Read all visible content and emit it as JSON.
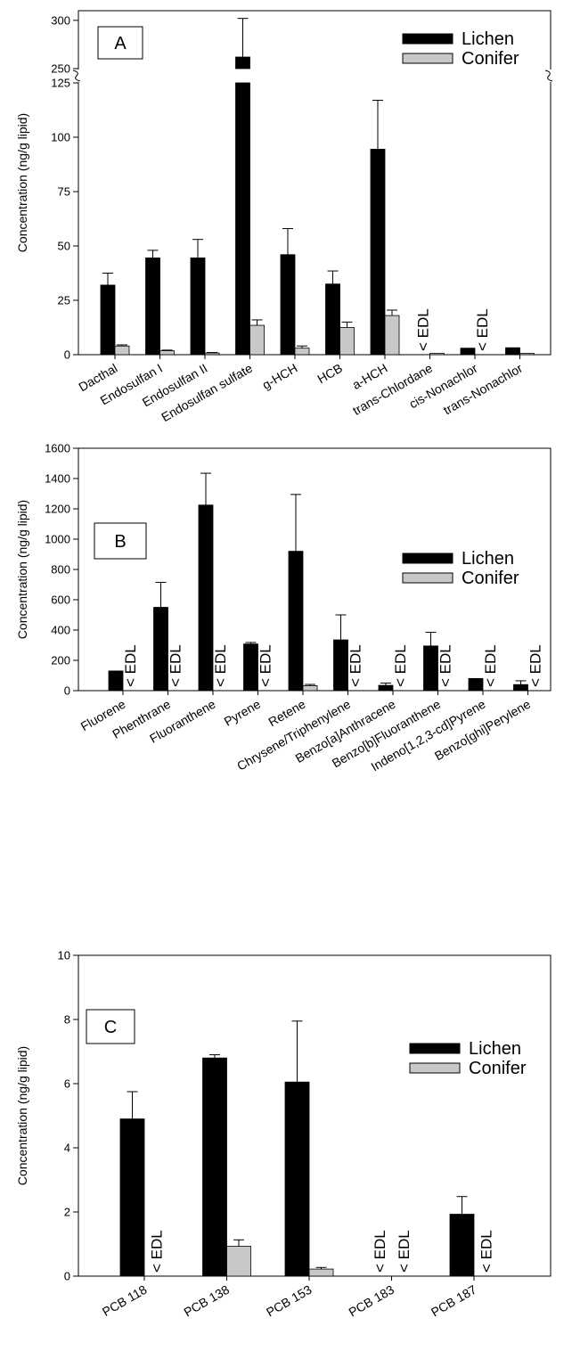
{
  "colors": {
    "lichen": "#000000",
    "conifer": "#c8c8c8",
    "axis": "#000000"
  },
  "chart_data": [
    {
      "type": "bar",
      "panel_label": "A",
      "ylabel": "Concentration (ng/g lipid)",
      "axis_break": {
        "lower_max": 125,
        "upper_min": 250,
        "upper_max": 310
      },
      "lower_ticks": [
        "0",
        "25",
        "50",
        "75",
        "100",
        "125"
      ],
      "upper_ticks": [
        "250",
        "300"
      ],
      "categories": [
        "Dacthal",
        "Endosulfan I",
        "Endosulfan II",
        "Endosulfan sulfate",
        "g-HCH",
        "HCB",
        "a-HCH",
        "trans-Chlordane",
        "cis-Nonachlor",
        "trans-Nonachlor"
      ],
      "series": [
        {
          "name": "Lichen",
          "values": [
            32,
            44.5,
            44.5,
            262,
            46,
            32.5,
            94.5,
            null,
            3,
            3.2
          ],
          "errors": [
            5.5,
            3.5,
            8.5,
            40,
            12,
            6,
            22.5,
            null,
            0,
            0
          ],
          "below_edl": [
            false,
            false,
            false,
            false,
            false,
            false,
            false,
            true,
            false,
            false
          ]
        },
        {
          "name": "Conifer",
          "values": [
            4,
            1.8,
            0.8,
            13.5,
            3,
            12.5,
            18,
            0.6,
            null,
            0.6
          ],
          "errors": [
            0.5,
            0.3,
            0.2,
            2.5,
            1,
            2.5,
            2.5,
            0,
            null,
            0
          ],
          "below_edl": [
            false,
            false,
            false,
            false,
            false,
            false,
            false,
            false,
            true,
            false
          ]
        }
      ],
      "edl_label": "< EDL"
    },
    {
      "type": "bar",
      "panel_label": "B",
      "ylabel": "Concentration (ng/g lipid)",
      "ylim": [
        0,
        1600
      ],
      "ticks": [
        "0",
        "200",
        "400",
        "600",
        "800",
        "1000",
        "1200",
        "1400",
        "1600"
      ],
      "categories": [
        "Fluorene",
        "Phenthrane",
        "Fluoranthene",
        "Pyrene",
        "Retene",
        "Chrysene/Triphenylene",
        "Benzo[a]Anthracene",
        "Benzo[b]Fluoranthene",
        "Indeno[1,2,3-cd]Pyrene",
        "Benzo[ghi]Perylene"
      ],
      "series": [
        {
          "name": "Lichen",
          "values": [
            130,
            550,
            1225,
            308,
            920,
            335,
            35,
            295,
            80,
            40
          ],
          "errors": [
            0,
            165,
            210,
            10,
            375,
            165,
            15,
            90,
            0,
            25
          ],
          "below_edl": [
            false,
            false,
            false,
            false,
            false,
            false,
            false,
            false,
            false,
            false
          ]
        },
        {
          "name": "Conifer",
          "values": [
            null,
            null,
            null,
            null,
            33,
            null,
            null,
            null,
            null,
            null
          ],
          "errors": [
            null,
            null,
            null,
            null,
            8,
            null,
            null,
            null,
            null,
            null
          ],
          "below_edl": [
            true,
            true,
            true,
            true,
            false,
            true,
            true,
            true,
            true,
            true
          ]
        }
      ],
      "edl_label": "< EDL"
    },
    {
      "type": "bar",
      "panel_label": "C",
      "ylabel": "Concentration (ng/g lipid)",
      "ylim": [
        0,
        10
      ],
      "ticks": [
        "0",
        "2",
        "4",
        "6",
        "8",
        "10"
      ],
      "categories": [
        "PCB 118",
        "PCB 138",
        "PCB 153",
        "PCB 183",
        "PCB 187"
      ],
      "series": [
        {
          "name": "Lichen",
          "values": [
            4.9,
            6.8,
            6.05,
            null,
            1.93
          ],
          "errors": [
            0.85,
            0.1,
            1.9,
            null,
            0.55
          ],
          "below_edl": [
            false,
            false,
            false,
            true,
            false
          ]
        },
        {
          "name": "Conifer",
          "values": [
            null,
            0.93,
            0.22,
            null,
            null
          ],
          "errors": [
            null,
            0.2,
            0.05,
            null,
            null
          ],
          "below_edl": [
            true,
            false,
            false,
            true,
            true
          ]
        }
      ],
      "edl_label": "< EDL"
    }
  ]
}
